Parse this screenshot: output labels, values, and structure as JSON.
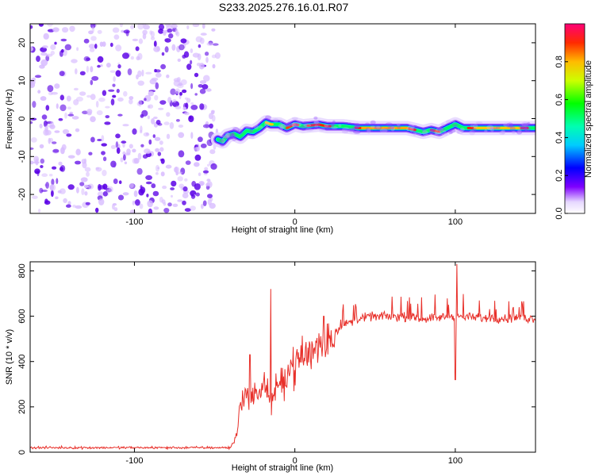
{
  "title": "S233.2025.276.16.01.R07",
  "colors": {
    "snr_line": "#e8302a",
    "speckle_dark": "#5a00e6",
    "speckle_light": "#d8bcff",
    "axis": "#000000"
  },
  "chart_data": [
    {
      "type": "heatmap",
      "name": "spectrogram",
      "xlabel": "Height of straight line (km)",
      "ylabel": "Frequency (Hz)",
      "xlim": [
        -165,
        150
      ],
      "ylim": [
        -25,
        25
      ],
      "xticks": [
        -100,
        0,
        100
      ],
      "xtick_labels": [
        "-100",
        "0",
        "100"
      ],
      "yticks": [
        -20,
        -10,
        0,
        10,
        20
      ],
      "ytick_labels": [
        "-20",
        "-10",
        "0",
        "10",
        "20"
      ],
      "noise_region_x": [
        -165,
        -48
      ],
      "ridge": {
        "x": [
          -48,
          -45,
          -42,
          -38,
          -34,
          -30,
          -26,
          -22,
          -18,
          -15,
          -10,
          -5,
          0,
          5,
          10,
          15,
          20,
          30,
          40,
          50,
          60,
          70,
          75,
          80,
          85,
          90,
          95,
          100,
          105,
          110,
          120,
          130,
          140,
          150
        ],
        "freq": [
          -5.5,
          -6.0,
          -4.5,
          -4.0,
          -4.8,
          -3.2,
          -3.5,
          -2.5,
          -1.0,
          -1.5,
          -1.5,
          -2.5,
          -1.5,
          -2.0,
          -1.8,
          -1.6,
          -2.0,
          -2.0,
          -2.5,
          -2.5,
          -2.5,
          -2.5,
          -3.0,
          -3.5,
          -3.0,
          -3.5,
          -2.5,
          -1.5,
          -2.5,
          -2.5,
          -2.5,
          -2.5,
          -2.5,
          -2.5
        ]
      },
      "colorbar": {
        "label": "Normalized spectral amplitude",
        "range": [
          0,
          1
        ],
        "ticks": [
          0.0,
          0.2,
          0.4,
          0.6,
          0.8
        ],
        "tick_labels": [
          "0.0",
          "0.2",
          "0.4",
          "0.6",
          "0.8"
        ]
      }
    },
    {
      "type": "line",
      "name": "snr",
      "xlabel": "Height of straight line (km)",
      "ylabel": "SNR (10 * v/v)",
      "xlim": [
        -165,
        150
      ],
      "ylim": [
        0,
        840
      ],
      "xticks": [
        -100,
        0,
        100
      ],
      "xtick_labels": [
        "-100",
        "0",
        "100"
      ],
      "yticks": [
        0,
        200,
        400,
        600,
        800
      ],
      "ytick_labels": [
        "0",
        "200",
        "400",
        "600",
        "800"
      ],
      "envelope": {
        "x": [
          -165,
          -40,
          -36,
          -34,
          -30,
          -25,
          -20,
          -18,
          -16,
          -15,
          -12,
          -8,
          -5,
          0,
          5,
          10,
          15,
          20,
          25,
          30,
          40,
          50,
          60,
          80,
          100,
          120,
          150
        ],
        "y": [
          20,
          20,
          80,
          230,
          250,
          240,
          300,
          280,
          260,
          220,
          270,
          300,
          360,
          390,
          420,
          440,
          470,
          500,
          530,
          560,
          590,
          600,
          600,
          590,
          600,
          590,
          590
        ]
      },
      "spikes": [
        {
          "x": -15,
          "y": 720
        },
        {
          "x": 101,
          "y": 830
        },
        {
          "x": 100,
          "y": 320
        },
        {
          "x": -28,
          "y": 430
        },
        {
          "x": 18,
          "y": 600
        }
      ]
    }
  ]
}
